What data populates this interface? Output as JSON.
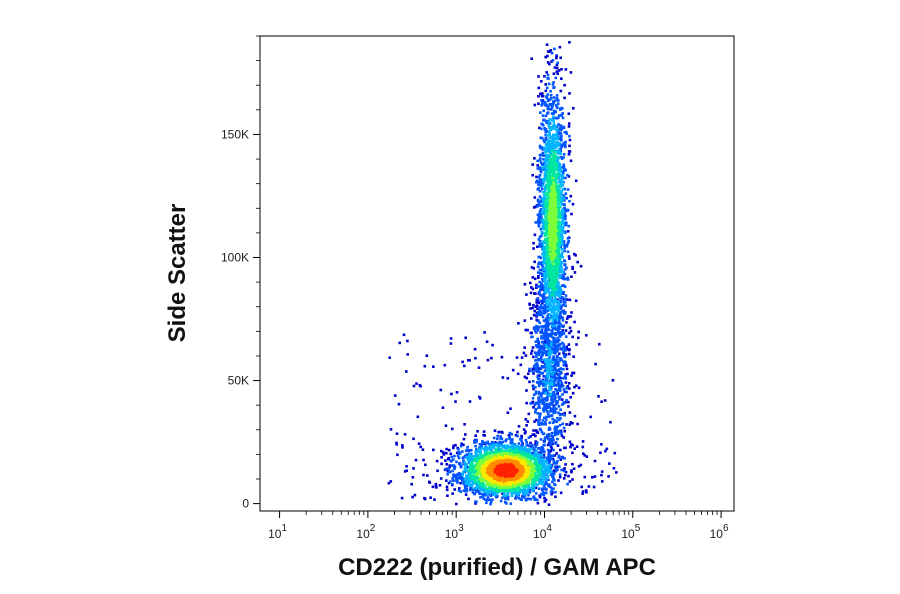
{
  "chart_data": {
    "type": "scatter",
    "title": "",
    "xlabel": "CD222 (purified) / GAM APC",
    "ylabel": "Side Scatter",
    "x_scale": "log",
    "xlim": [
      6,
      1400000
    ],
    "ylim": [
      -3000,
      190000
    ],
    "x_ticks": [
      {
        "value": 10,
        "base": "10",
        "exp": "1"
      },
      {
        "value": 100,
        "base": "10",
        "exp": "2"
      },
      {
        "value": 1000,
        "base": "10",
        "exp": "3"
      },
      {
        "value": 10000,
        "base": "10",
        "exp": "4"
      },
      {
        "value": 100000,
        "base": "10",
        "exp": "5"
      },
      {
        "value": 1000000,
        "base": "10",
        "exp": "6"
      }
    ],
    "y_ticks": [
      {
        "value": 0,
        "label": "0"
      },
      {
        "value": 50000,
        "label": "50K"
      },
      {
        "value": 100000,
        "label": "100K"
      },
      {
        "value": 150000,
        "label": "150K"
      }
    ],
    "grid": false,
    "legend": "none",
    "density_colormap": [
      "#0000cc",
      "#0055ff",
      "#00b4ff",
      "#00e6a0",
      "#7cff3a",
      "#ffe800",
      "#ff8c00",
      "#ff2200"
    ],
    "populations": [
      {
        "x_center": 3500,
        "x_spread_log10": 0.26,
        "y_center": 14000,
        "y_spread": 5500,
        "points": 2600,
        "color_level": 1.0
      },
      {
        "x_center": 12000,
        "x_spread_log10": 0.08,
        "y_center": 115000,
        "y_spread": 27000,
        "points": 2100,
        "color_level": 0.55
      },
      {
        "x_center": 11000,
        "x_spread_log10": 0.11,
        "y_center": 55000,
        "y_spread": 20000,
        "points": 900,
        "color_level": 0.2
      }
    ]
  }
}
